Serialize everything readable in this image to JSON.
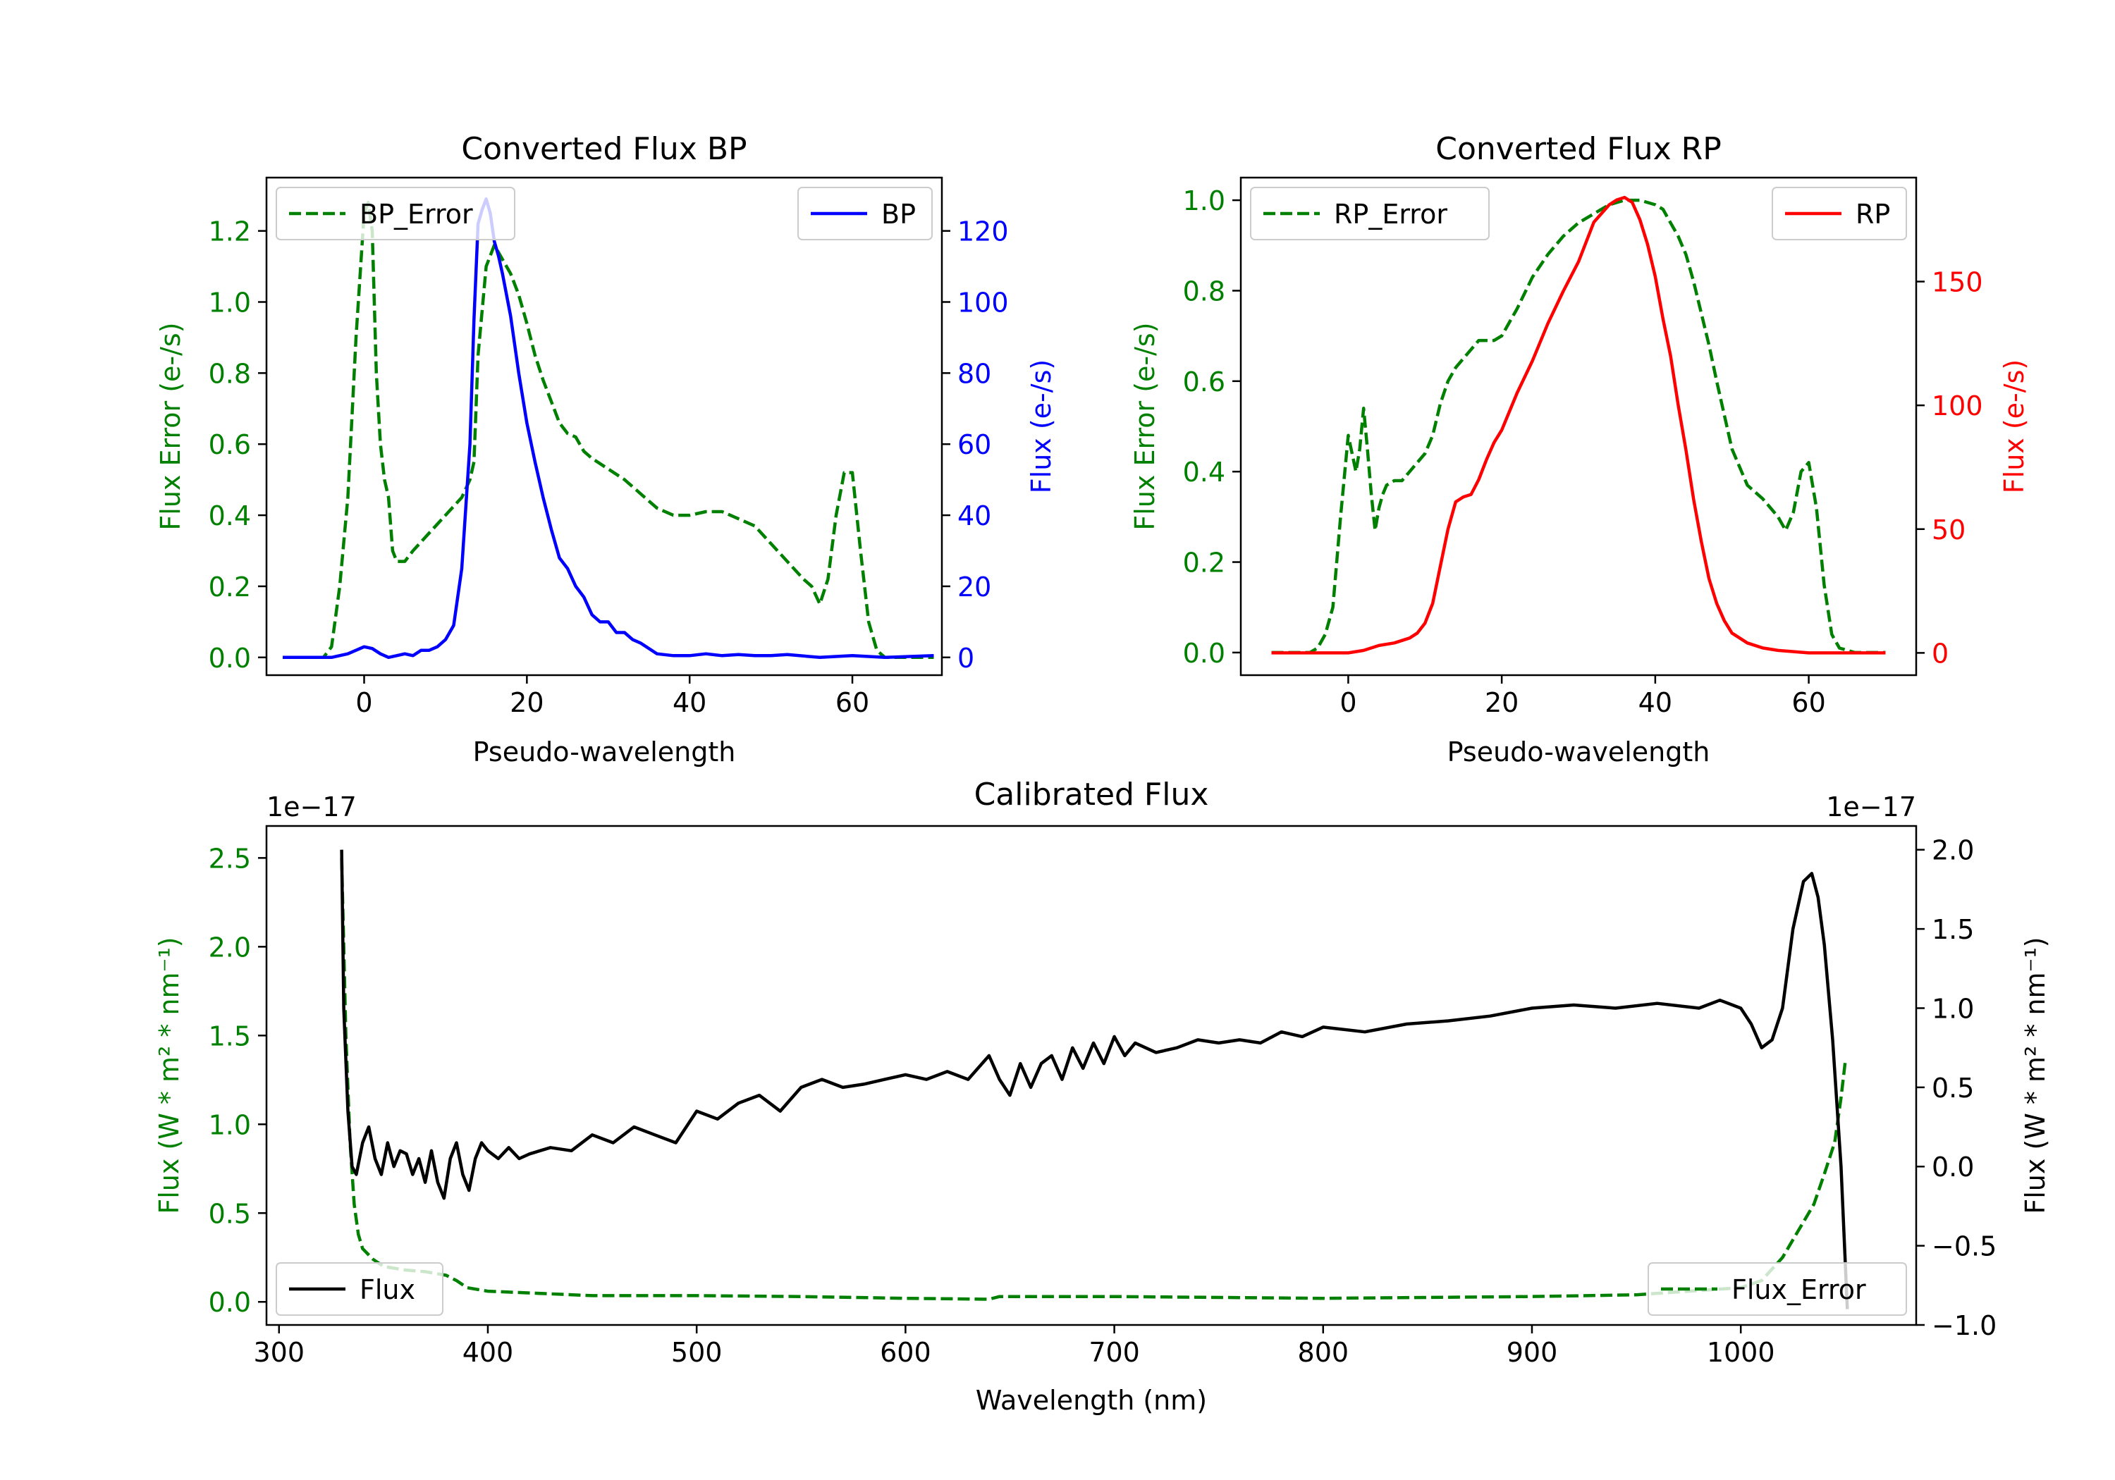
{
  "chart_data": [
    {
      "type": "line",
      "title": "Converted Flux BP",
      "xlabel": "Pseudo-wavelength",
      "ylabel_left": "Flux Error (e-/s)",
      "ylabel_right": "Flux (e-/s)",
      "xlim": [
        -12,
        71
      ],
      "ylim_left": [
        -0.05,
        1.35
      ],
      "ylim_right": [
        -5,
        135
      ],
      "xticks": [
        0,
        20,
        40,
        60
      ],
      "yticks_left": [
        0.0,
        0.2,
        0.4,
        0.6,
        0.8,
        1.0,
        1.2
      ],
      "yticks_right": [
        0,
        20,
        40,
        60,
        80,
        100,
        120
      ],
      "left_color": "#008000",
      "right_color": "#0000ff",
      "series": [
        {
          "name": "BP_Error",
          "axis": "left",
          "style": "dashed",
          "color": "#008000",
          "x": [
            -10,
            -7,
            -5,
            -4,
            -3,
            -2,
            -1,
            0,
            0.5,
            1,
            1.5,
            2,
            2.5,
            3,
            3.5,
            4,
            5,
            6,
            8,
            10,
            12,
            13,
            13.5,
            14,
            15,
            16,
            17,
            18,
            19,
            20,
            21,
            22,
            23,
            24,
            25,
            26,
            27,
            28,
            30,
            32,
            34,
            36,
            38,
            40,
            42,
            44,
            46,
            48,
            50,
            52,
            54,
            55,
            56,
            57,
            58,
            59,
            60,
            61,
            62,
            63,
            64,
            66,
            68,
            70
          ],
          "y": [
            0.0,
            0.0,
            0.0,
            0.03,
            0.2,
            0.45,
            0.9,
            1.25,
            1.28,
            1.2,
            0.8,
            0.6,
            0.5,
            0.45,
            0.3,
            0.27,
            0.27,
            0.3,
            0.35,
            0.4,
            0.45,
            0.5,
            0.55,
            0.85,
            1.1,
            1.16,
            1.12,
            1.08,
            1.02,
            0.94,
            0.85,
            0.78,
            0.72,
            0.66,
            0.63,
            0.62,
            0.58,
            0.56,
            0.53,
            0.5,
            0.46,
            0.42,
            0.4,
            0.4,
            0.41,
            0.41,
            0.39,
            0.37,
            0.32,
            0.27,
            0.22,
            0.2,
            0.15,
            0.22,
            0.4,
            0.52,
            0.52,
            0.3,
            0.1,
            0.02,
            0.0,
            0.0,
            0.0,
            0.0
          ]
        },
        {
          "name": "BP",
          "axis": "right",
          "style": "solid",
          "color": "#0000ff",
          "x": [
            -10,
            -6,
            -4,
            -2,
            0,
            1,
            2,
            3,
            4,
            5,
            6,
            7,
            8,
            9,
            10,
            11,
            12,
            13,
            13.5,
            14,
            14.5,
            15,
            15.5,
            16,
            16.5,
            17,
            18,
            19,
            20,
            21,
            22,
            23,
            24,
            25,
            26,
            27,
            28,
            29,
            30,
            31,
            32,
            33,
            34,
            36,
            38,
            40,
            42,
            44,
            46,
            48,
            50,
            52,
            56,
            60,
            64,
            70
          ],
          "y": [
            0,
            0,
            0,
            1,
            3,
            2.5,
            1,
            0,
            0.5,
            1,
            0.5,
            2,
            2,
            3,
            5,
            9,
            25,
            60,
            95,
            122,
            126,
            129,
            125,
            117,
            113,
            108,
            96,
            80,
            66,
            55,
            45,
            36,
            28,
            25,
            20,
            17,
            12,
            10,
            10,
            7,
            7,
            5,
            4,
            1,
            0.5,
            0.5,
            1,
            0.5,
            0.8,
            0.5,
            0.5,
            0.8,
            0,
            0.5,
            0,
            0.5
          ]
        }
      ],
      "legend": [
        {
          "label": "BP_Error",
          "position": "upper-left"
        },
        {
          "label": "BP",
          "position": "upper-right"
        }
      ]
    },
    {
      "type": "line",
      "title": "Converted Flux RP",
      "xlabel": "Pseudo-wavelength",
      "ylabel_left": "Flux Error (e-/s)",
      "ylabel_right": "Flux (e-/s)",
      "xlim": [
        -14,
        74
      ],
      "ylim_left": [
        -0.05,
        1.05
      ],
      "ylim_right": [
        -9,
        192
      ],
      "xticks": [
        0,
        20,
        40,
        60
      ],
      "yticks_left": [
        0.0,
        0.2,
        0.4,
        0.6,
        0.8,
        1.0
      ],
      "yticks_right": [
        0,
        50,
        100,
        150
      ],
      "left_color": "#008000",
      "right_color": "#ff0000",
      "series": [
        {
          "name": "RP_Error",
          "axis": "left",
          "style": "dashed",
          "color": "#008000",
          "x": [
            -10,
            -5,
            -4,
            -3,
            -2,
            -1,
            0,
            1,
            1.5,
            2,
            2.5,
            3,
            3.5,
            4,
            4.5,
            5,
            6,
            7,
            8,
            9,
            10,
            11,
            12,
            13,
            14,
            15,
            16,
            17,
            18,
            19,
            20,
            22,
            24,
            26,
            28,
            30,
            32,
            34,
            36,
            38,
            40,
            41,
            42,
            43,
            44,
            45,
            46,
            47,
            48,
            50,
            52,
            54,
            55,
            56,
            57,
            58,
            59,
            60,
            61,
            62,
            63,
            64,
            66,
            68,
            70
          ],
          "y": [
            0.0,
            0.0,
            0.01,
            0.04,
            0.1,
            0.3,
            0.48,
            0.4,
            0.45,
            0.54,
            0.45,
            0.35,
            0.27,
            0.32,
            0.35,
            0.37,
            0.38,
            0.38,
            0.4,
            0.42,
            0.44,
            0.48,
            0.55,
            0.6,
            0.63,
            0.65,
            0.67,
            0.69,
            0.69,
            0.69,
            0.7,
            0.76,
            0.83,
            0.88,
            0.92,
            0.95,
            0.97,
            0.99,
            1.0,
            1.0,
            0.99,
            0.98,
            0.95,
            0.92,
            0.88,
            0.82,
            0.75,
            0.68,
            0.6,
            0.45,
            0.37,
            0.34,
            0.32,
            0.3,
            0.27,
            0.31,
            0.4,
            0.42,
            0.32,
            0.15,
            0.04,
            0.01,
            0.0,
            0.0,
            0.0
          ]
        },
        {
          "name": "RP",
          "axis": "right",
          "style": "solid",
          "color": "#ff0000",
          "x": [
            -10,
            -4,
            0,
            2,
            4,
            6,
            8,
            9,
            10,
            11,
            12,
            13,
            14,
            15,
            16,
            17,
            18,
            19,
            20,
            22,
            24,
            26,
            28,
            30,
            32,
            34,
            35,
            36,
            37,
            38,
            39,
            40,
            41,
            42,
            43,
            44,
            45,
            46,
            47,
            48,
            49,
            50,
            52,
            54,
            56,
            58,
            60,
            62,
            64,
            66,
            68,
            70
          ],
          "y": [
            0,
            0,
            0,
            1,
            3,
            4,
            6,
            8,
            12,
            20,
            35,
            50,
            61,
            63,
            64,
            70,
            78,
            85,
            90,
            105,
            118,
            133,
            146,
            158,
            174,
            181,
            183,
            184,
            182,
            175,
            165,
            152,
            135,
            120,
            100,
            82,
            62,
            45,
            30,
            20,
            13,
            8,
            4,
            2,
            1,
            0.5,
            0,
            0,
            0,
            0,
            0,
            0
          ]
        }
      ],
      "legend": [
        {
          "label": "RP_Error",
          "position": "upper-left"
        },
        {
          "label": "RP",
          "position": "upper-right"
        }
      ]
    },
    {
      "type": "line",
      "title": "Calibrated Flux",
      "xlabel": "Wavelength (nm)",
      "ylabel_left": "Flux (W * m² * nm⁻¹)",
      "ylabel_right": "Flux (W * m² * nm⁻¹)",
      "offset_left": "1e−17",
      "offset_right": "1e−17",
      "xlim": [
        294,
        1084
      ],
      "ylim_left": [
        -0.13,
        2.68
      ],
      "ylim_right": [
        -1.0,
        2.15
      ],
      "xticks": [
        300,
        400,
        500,
        600,
        700,
        800,
        900,
        1000
      ],
      "yticks_left": [
        "0.0",
        "0.5",
        "1.0",
        "1.5",
        "2.0",
        "2.5"
      ],
      "yticks_right": [
        "−1.0",
        "−0.5",
        "0.0",
        "0.5",
        "1.0",
        "1.5",
        "2.0"
      ],
      "left_color": "#008000",
      "right_color": "#000000",
      "series": [
        {
          "name": "Flux_Error",
          "axis": "left",
          "style": "dashed",
          "color": "#008000",
          "x": [
            330,
            332,
            334,
            336,
            338,
            340,
            345,
            350,
            360,
            370,
            380,
            385,
            390,
            400,
            420,
            450,
            500,
            550,
            600,
            640,
            645,
            700,
            800,
            900,
            950,
            1000,
            1010,
            1020,
            1025,
            1030,
            1035,
            1040,
            1045,
            1048,
            1050
          ],
          "y": [
            2.5,
            1.5,
            0.9,
            0.55,
            0.38,
            0.3,
            0.24,
            0.2,
            0.18,
            0.17,
            0.15,
            0.12,
            0.08,
            0.06,
            0.05,
            0.035,
            0.035,
            0.03,
            0.02,
            0.015,
            0.03,
            0.03,
            0.02,
            0.03,
            0.04,
            0.08,
            0.12,
            0.25,
            0.35,
            0.45,
            0.55,
            0.72,
            0.9,
            1.15,
            1.35
          ]
        },
        {
          "name": "Flux",
          "axis": "right",
          "style": "solid",
          "color": "#000000",
          "x": [
            330,
            331,
            333,
            335,
            337,
            340,
            343,
            346,
            349,
            352,
            355,
            358,
            361,
            364,
            367,
            370,
            373,
            376,
            379,
            382,
            385,
            388,
            391,
            394,
            397,
            400,
            405,
            410,
            415,
            420,
            430,
            440,
            450,
            460,
            470,
            480,
            490,
            500,
            510,
            520,
            530,
            540,
            550,
            560,
            570,
            580,
            590,
            600,
            610,
            620,
            630,
            640,
            645,
            650,
            655,
            660,
            665,
            670,
            675,
            680,
            685,
            690,
            695,
            700,
            705,
            710,
            720,
            730,
            740,
            750,
            760,
            770,
            780,
            790,
            800,
            820,
            840,
            860,
            880,
            900,
            920,
            940,
            960,
            980,
            990,
            1000,
            1005,
            1010,
            1015,
            1020,
            1025,
            1030,
            1034,
            1037,
            1040,
            1044,
            1048,
            1051
          ],
          "y": [
            2.0,
            1.0,
            0.35,
            0.0,
            -0.05,
            0.15,
            0.25,
            0.05,
            -0.05,
            0.15,
            0.0,
            0.1,
            0.08,
            -0.05,
            0.05,
            -0.1,
            0.1,
            -0.1,
            -0.2,
            0.05,
            0.15,
            -0.05,
            -0.15,
            0.05,
            0.15,
            0.1,
            0.05,
            0.12,
            0.05,
            0.08,
            0.12,
            0.1,
            0.2,
            0.15,
            0.25,
            0.2,
            0.15,
            0.35,
            0.3,
            0.4,
            0.45,
            0.35,
            0.5,
            0.55,
            0.5,
            0.52,
            0.55,
            0.58,
            0.55,
            0.6,
            0.55,
            0.7,
            0.55,
            0.45,
            0.65,
            0.5,
            0.65,
            0.7,
            0.55,
            0.75,
            0.62,
            0.78,
            0.65,
            0.82,
            0.7,
            0.78,
            0.72,
            0.75,
            0.8,
            0.78,
            0.8,
            0.78,
            0.85,
            0.82,
            0.88,
            0.85,
            0.9,
            0.92,
            0.95,
            1.0,
            1.02,
            1.0,
            1.03,
            1.0,
            1.05,
            1.0,
            0.9,
            0.75,
            0.8,
            1.0,
            1.5,
            1.8,
            1.85,
            1.7,
            1.4,
            0.8,
            0.0,
            -0.9
          ]
        }
      ],
      "legend": [
        {
          "label": "Flux",
          "position": "lower-left"
        },
        {
          "label": "Flux_Error",
          "position": "lower-right"
        }
      ]
    }
  ]
}
